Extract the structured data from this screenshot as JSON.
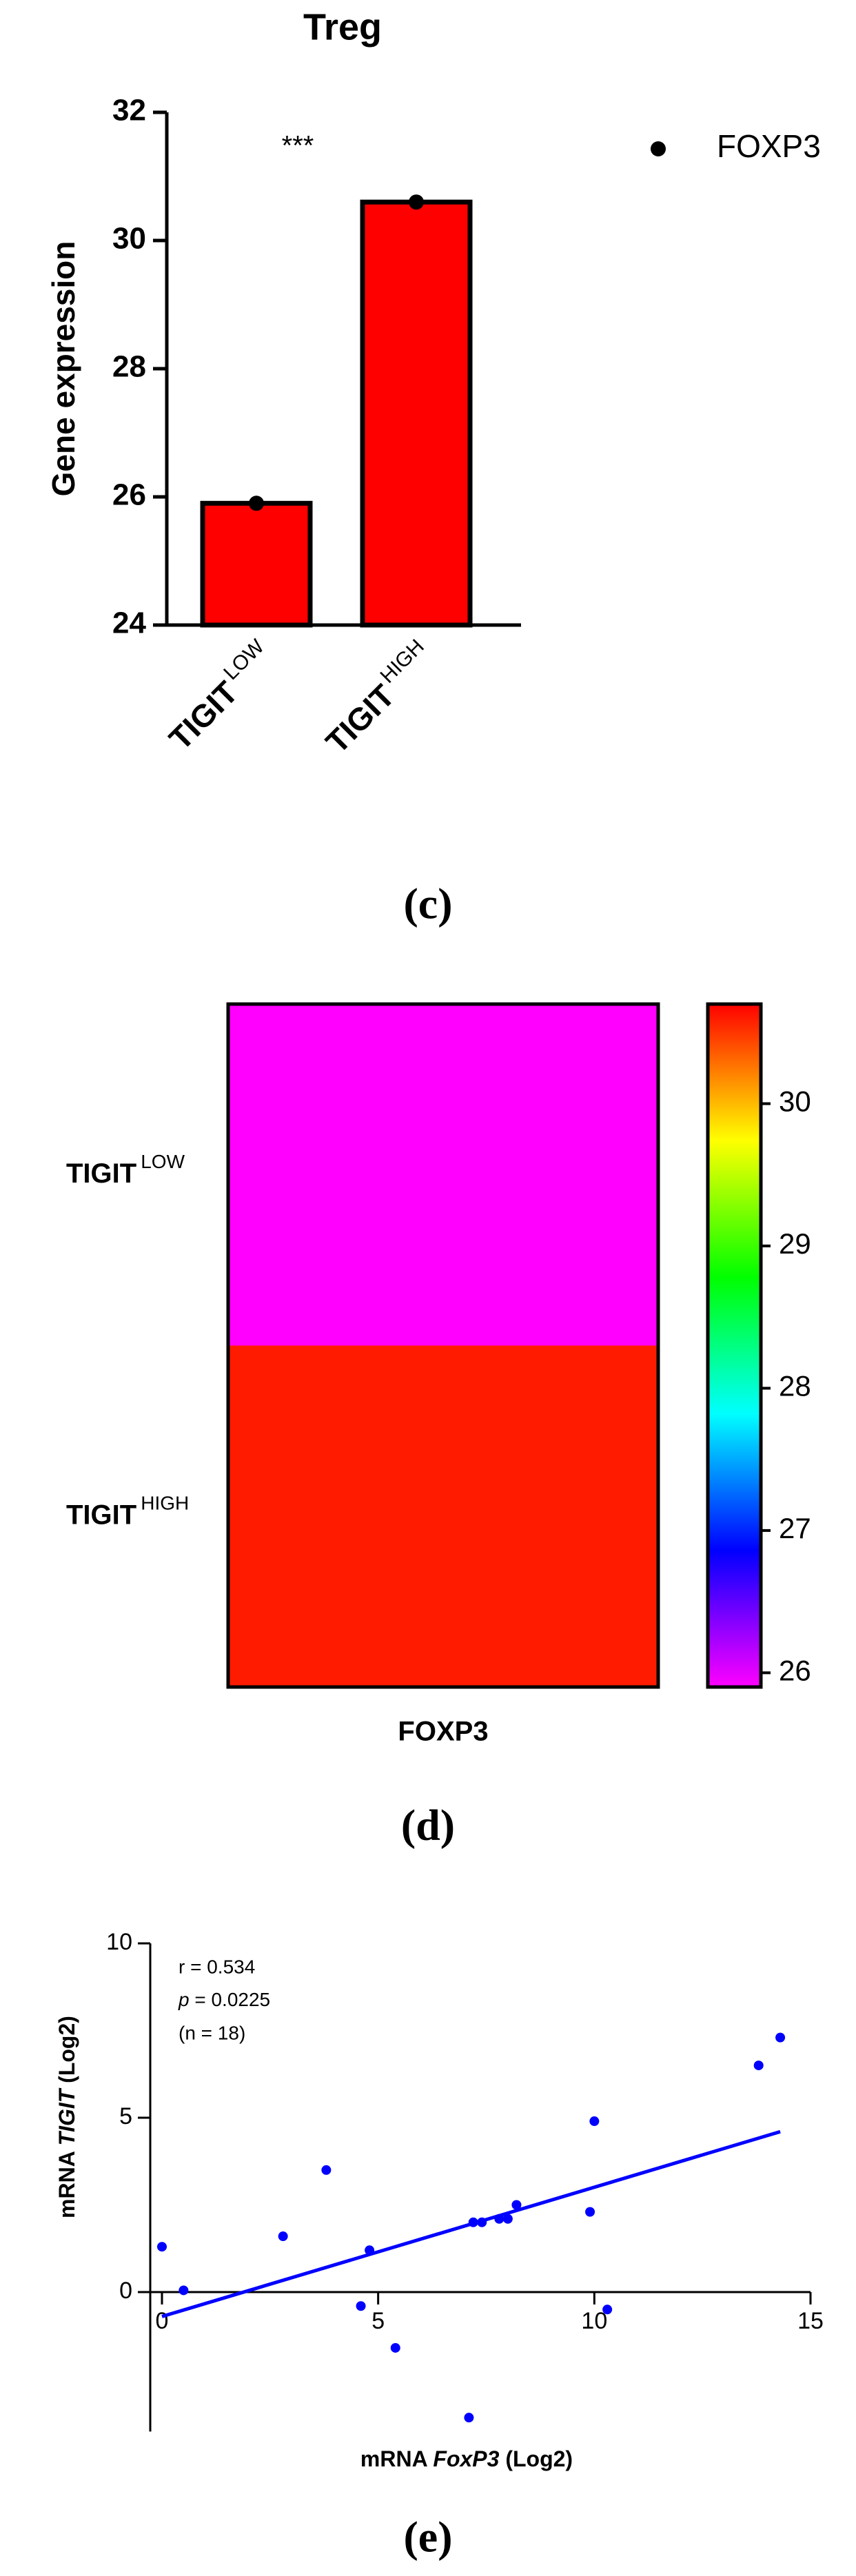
{
  "chart_data": [
    {
      "type": "bar",
      "panel_label": "(c)",
      "title": "Treg",
      "ylabel": "Gene expression",
      "categories": [
        [
          "TIGIT",
          "LOW"
        ],
        [
          "TIGIT",
          "HIGH"
        ]
      ],
      "series": [
        {
          "name": "FOXP3",
          "color": "#ff0000",
          "marker_color": "#000000",
          "values": [
            25.9,
            30.6
          ]
        }
      ],
      "ylim": [
        24,
        32
      ],
      "yticks": [
        24,
        26,
        28,
        30,
        32
      ],
      "annotation": "***",
      "legend": "upper right"
    },
    {
      "type": "heatmap",
      "panel_label": "(d)",
      "rows": [
        [
          "TIGIT",
          "LOW"
        ],
        [
          "TIGIT",
          "HIGH"
        ]
      ],
      "columns": [
        "FOXP3"
      ],
      "values": [
        [
          25.9
        ],
        [
          30.6
        ]
      ],
      "colormap": [
        "#ff00ff",
        "#0000ff",
        "#00ffff",
        "#00ff00",
        "#ffff00",
        "#ff0000"
      ],
      "clim": [
        25.9,
        30.7
      ],
      "cticks": [
        26,
        27,
        28,
        29,
        30
      ]
    },
    {
      "type": "scatter",
      "panel_label": "(e)",
      "xlabel": [
        "mRNA ",
        "FoxP3",
        " (Log2)"
      ],
      "ylabel": [
        "mRNA ",
        "TIGIT",
        " (Log2)"
      ],
      "x": [
        0,
        0.5,
        2.8,
        3.8,
        4.6,
        4.8,
        5.4,
        7.1,
        7.2,
        7.4,
        7.8,
        8.0,
        8.2,
        9.9,
        10.0,
        10.3,
        13.8,
        14.3
      ],
      "y": [
        1.3,
        0.05,
        1.6,
        3.5,
        -0.4,
        1.2,
        -1.6,
        -3.6,
        2.0,
        2.0,
        2.1,
        2.1,
        2.5,
        2.3,
        4.9,
        -0.5,
        6.5,
        7.3
      ],
      "color": "#0000ff",
      "trendline": {
        "x": [
          0,
          14.3
        ],
        "y": [
          -0.7,
          4.6
        ]
      },
      "annotations": {
        "r": "r = 0.534",
        "p": [
          "p",
          " = 0.0225"
        ],
        "n": "(n = 18)"
      },
      "xlim": [
        0,
        15
      ],
      "ylim": [
        -4,
        10
      ],
      "xticks": [
        0,
        5,
        10,
        15
      ],
      "yticks": [
        0,
        5,
        10
      ]
    }
  ]
}
